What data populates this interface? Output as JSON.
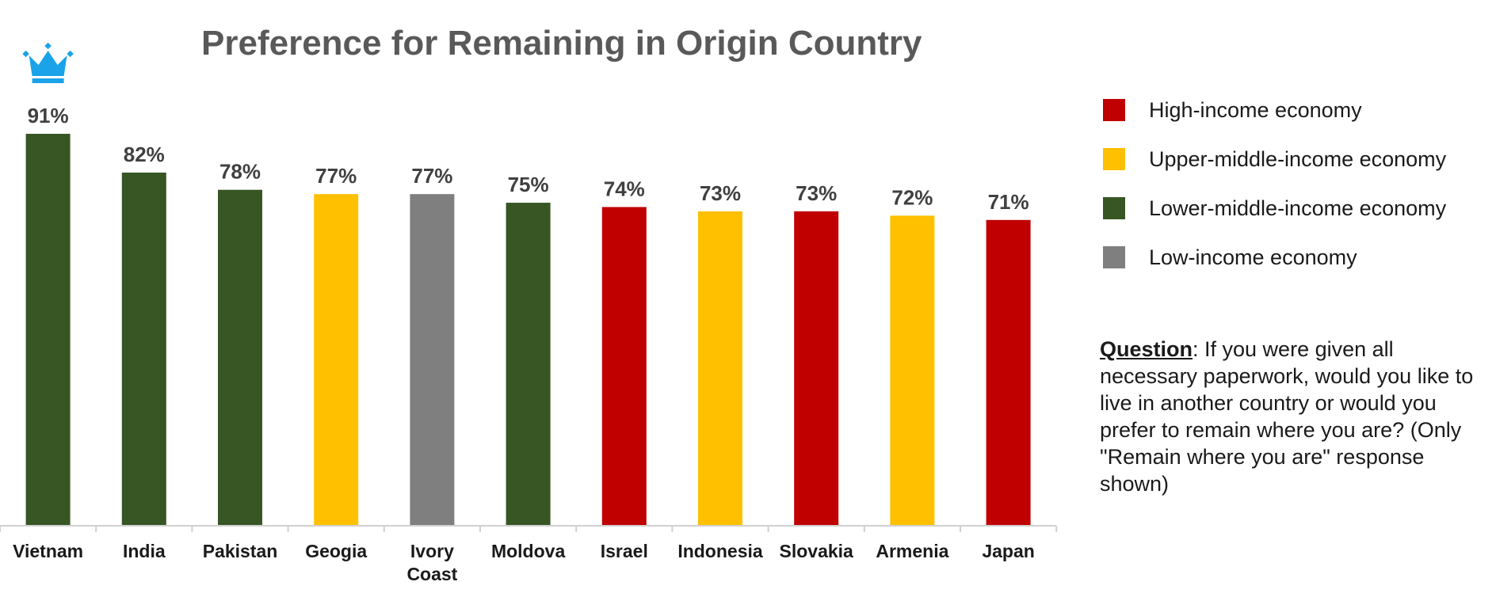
{
  "chart_data": {
    "type": "bar",
    "title": "Preference for Remaining in Origin Country",
    "categories": [
      "Vietnam",
      "India",
      "Pakistan",
      "Geogia",
      "Ivory Coast",
      "Moldova",
      "Israel",
      "Indonesia",
      "Slovakia",
      "Armenia",
      "Japan"
    ],
    "values": [
      91,
      82,
      78,
      77,
      77,
      75,
      74,
      73,
      73,
      72,
      71
    ],
    "value_labels": [
      "91%",
      "82%",
      "78%",
      "77%",
      "77%",
      "75%",
      "74%",
      "73%",
      "73%",
      "72%",
      "71%"
    ],
    "income_group": [
      "lower-middle",
      "lower-middle",
      "lower-middle",
      "upper-middle",
      "low",
      "lower-middle",
      "high",
      "upper-middle",
      "high",
      "upper-middle",
      "high"
    ],
    "ylim": [
      0,
      91
    ],
    "grid": false,
    "legend_position": "right",
    "legend": [
      {
        "key": "high",
        "label": "High-income economy",
        "color": "#c00000"
      },
      {
        "key": "upper-middle",
        "label": "Upper-middle-income economy",
        "color": "#ffc000"
      },
      {
        "key": "lower-middle",
        "label": "Lower-middle-income economy",
        "color": "#375623"
      },
      {
        "key": "low",
        "label": "Low-income economy",
        "color": "#7f7f7f"
      }
    ],
    "top_marker_icon": "crown-icon",
    "top_marker_color": "#1aa3e8"
  },
  "question": {
    "label": "Question",
    "text": ": If you were given all necessary paperwork, would you like to live in another country or would you prefer to remain where you are? (Only \"Remain where you are\" response shown)"
  }
}
